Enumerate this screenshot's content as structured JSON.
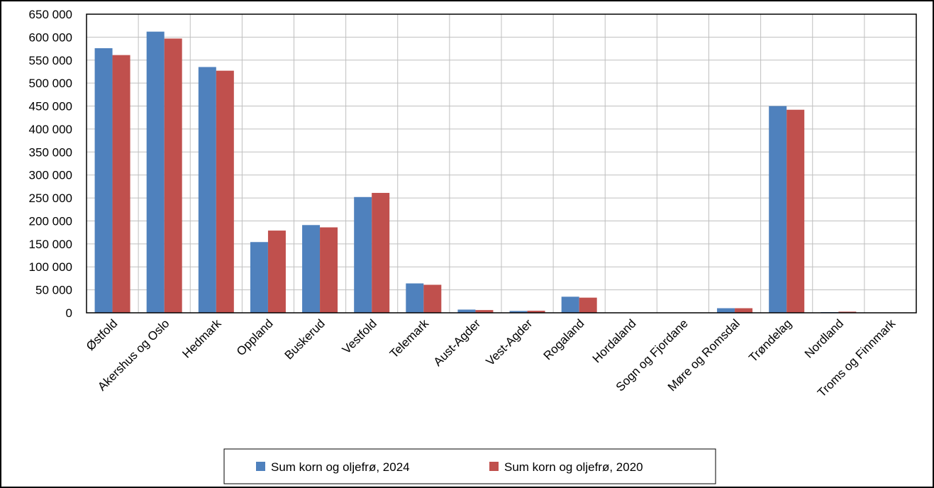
{
  "chart_data": {
    "type": "bar",
    "categories": [
      "Østfold",
      "Akershus og Oslo",
      "Hedmark",
      "Oppland",
      "Buskerud",
      "Vestfold",
      "Telemark",
      "Aust-Agder",
      "Vest-Agder",
      "Rogaland",
      "Hordaland",
      "Sogn og Fjordane",
      "Møre og Romsdal",
      "Trøndelag",
      "Nordland",
      "Troms og Finnmark"
    ],
    "series": [
      {
        "name": "Sum korn og oljefrø, 2024",
        "color": "#4F81BD",
        "values": [
          576000,
          612000,
          535000,
          154000,
          191000,
          252000,
          64000,
          7000,
          4000,
          35000,
          500,
          300,
          10000,
          450000,
          1500,
          300
        ]
      },
      {
        "name": "Sum korn og oljefrø, 2020",
        "color": "#C0504D",
        "values": [
          561000,
          597000,
          527000,
          179000,
          186000,
          261000,
          61000,
          6000,
          4500,
          33000,
          500,
          300,
          10000,
          442000,
          2500,
          300
        ]
      }
    ],
    "yticks": [
      "0",
      "50 000",
      "100 000",
      "150 000",
      "200 000",
      "250 000",
      "300 000",
      "350 000",
      "400 000",
      "450 000",
      "500 000",
      "550 000",
      "600 000",
      "650 000"
    ],
    "ylim": [
      0,
      650000
    ],
    "grid": true,
    "legend": "bottom"
  }
}
